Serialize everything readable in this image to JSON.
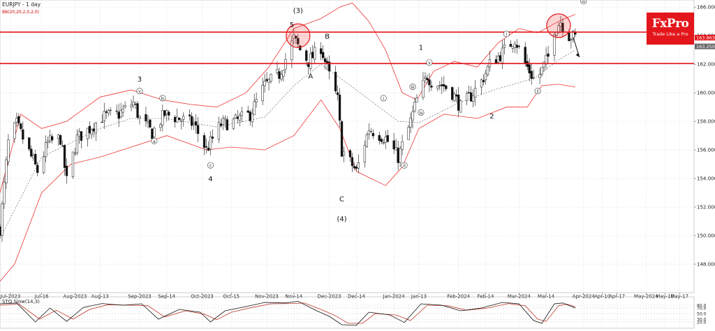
{
  "header": {
    "symbol_label": "EURJPY - 1 day",
    "indicator_label": "BB(20,20,2,0,2,0)"
  },
  "logo": {
    "main": "FxPro",
    "sub": "Trade Like a Pro"
  },
  "stochastic": {
    "label": "STO Slow(14,3)",
    "levels": [
      "80.0",
      "70.0",
      "50.0",
      "30.0",
      "20.0"
    ]
  },
  "price_tags": [
    {
      "value": "163.863",
      "color": "#e3161b"
    },
    {
      "value": "163.250",
      "color": "#666666"
    }
  ],
  "chart_data": {
    "type": "candlestick",
    "title": "EURJPY - 1 day",
    "ylim": [
      146.0,
      166.5
    ],
    "y_ticks": [
      "148.000",
      "150.000",
      "152.000",
      "154.000",
      "156.000",
      "158.000",
      "160.000",
      "162.000",
      "164.000",
      "166.000"
    ],
    "x_ticks": [
      "Jul-2023",
      "Jul-16",
      "Aug-2023",
      "Aug-13",
      "Sep-2023",
      "Sep-14",
      "Oct-2023",
      "Oct-15",
      "Nov-2023",
      "Nov-14",
      "Dec-2023",
      "Dec-14",
      "Jan-2024",
      "Jan-13",
      "Feb-2024",
      "Feb-14",
      "Mar-2024",
      "Mar-14",
      "Apr-2024",
      "Apr-10",
      "Apr-17",
      "May-2024",
      "May-10",
      "May-17"
    ],
    "horizontal_levels": [
      164.25,
      162.05
    ],
    "close_path": [
      {
        "d": "2023-06-26",
        "v": 150.5
      },
      {
        "d": "2023-06-30",
        "v": 156.5
      },
      {
        "d": "2023-07-04",
        "v": 157.8
      },
      {
        "d": "2023-07-11",
        "v": 155.5
      },
      {
        "d": "2023-07-14",
        "v": 154.5
      },
      {
        "d": "2023-07-19",
        "v": 156.5
      },
      {
        "d": "2023-07-25",
        "v": 156.8
      },
      {
        "d": "2023-07-28",
        "v": 153.8
      },
      {
        "d": "2023-08-02",
        "v": 156.8
      },
      {
        "d": "2023-08-08",
        "v": 157.5
      },
      {
        "d": "2023-08-14",
        "v": 158.3
      },
      {
        "d": "2023-08-22",
        "v": 158.5
      },
      {
        "d": "2023-08-29",
        "v": 159.3
      },
      {
        "d": "2023-09-01",
        "v": 158.2
      },
      {
        "d": "2023-09-07",
        "v": 157.2
      },
      {
        "d": "2023-09-13",
        "v": 158.5
      },
      {
        "d": "2023-09-20",
        "v": 158.2
      },
      {
        "d": "2023-09-27",
        "v": 157.8
      },
      {
        "d": "2023-10-03",
        "v": 156.0
      },
      {
        "d": "2023-10-10",
        "v": 157.8
      },
      {
        "d": "2023-10-17",
        "v": 158.0
      },
      {
        "d": "2023-10-24",
        "v": 158.5
      },
      {
        "d": "2023-10-31",
        "v": 160.5
      },
      {
        "d": "2023-11-07",
        "v": 161.3
      },
      {
        "d": "2023-11-14",
        "v": 163.8
      },
      {
        "d": "2023-11-17",
        "v": 163.0
      },
      {
        "d": "2023-11-21",
        "v": 162.2
      },
      {
        "d": "2023-11-27",
        "v": 163.2
      },
      {
        "d": "2023-12-01",
        "v": 161.2
      },
      {
        "d": "2023-12-05",
        "v": 159.5
      },
      {
        "d": "2023-12-07",
        "v": 156.0
      },
      {
        "d": "2023-12-14",
        "v": 154.5
      },
      {
        "d": "2023-12-20",
        "v": 157.5
      },
      {
        "d": "2023-12-28",
        "v": 156.8
      },
      {
        "d": "2024-01-03",
        "v": 155.5
      },
      {
        "d": "2024-01-08",
        "v": 157.5
      },
      {
        "d": "2024-01-12",
        "v": 159.5
      },
      {
        "d": "2024-01-17",
        "v": 161.2
      },
      {
        "d": "2024-01-19",
        "v": 160.8
      },
      {
        "d": "2024-01-25",
        "v": 160.5
      },
      {
        "d": "2024-01-29",
        "v": 160.0
      },
      {
        "d": "2024-02-02",
        "v": 159.0
      },
      {
        "d": "2024-02-07",
        "v": 159.8
      },
      {
        "d": "2024-02-12",
        "v": 160.8
      },
      {
        "d": "2024-02-16",
        "v": 162.0
      },
      {
        "d": "2024-02-22",
        "v": 162.8
      },
      {
        "d": "2024-02-28",
        "v": 163.8
      },
      {
        "d": "2024-03-03",
        "v": 162.3
      },
      {
        "d": "2024-03-08",
        "v": 161.0
      },
      {
        "d": "2024-03-11",
        "v": 161.3
      },
      {
        "d": "2024-03-15",
        "v": 162.5
      },
      {
        "d": "2024-03-18",
        "v": 164.5
      },
      {
        "d": "2024-03-21",
        "v": 165.0
      },
      {
        "d": "2024-03-25",
        "v": 164.0
      },
      {
        "d": "2024-03-28",
        "v": 163.9
      }
    ],
    "bollinger": {
      "upper": [
        {
          "d": "2023-06-26",
          "v": 153.0
        },
        {
          "d": "2023-07-06",
          "v": 158.5
        },
        {
          "d": "2023-07-16",
          "v": 157.5
        },
        {
          "d": "2023-07-28",
          "v": 158.0
        },
        {
          "d": "2023-08-13",
          "v": 159.7
        },
        {
          "d": "2023-08-28",
          "v": 160.2
        },
        {
          "d": "2023-09-12",
          "v": 159.5
        },
        {
          "d": "2023-09-25",
          "v": 159.2
        },
        {
          "d": "2023-10-08",
          "v": 159.0
        },
        {
          "d": "2023-10-22",
          "v": 160.0
        },
        {
          "d": "2023-11-02",
          "v": 161.8
        },
        {
          "d": "2023-11-14",
          "v": 164.5
        },
        {
          "d": "2023-11-27",
          "v": 165.2
        },
        {
          "d": "2023-12-06",
          "v": 166.0
        },
        {
          "d": "2023-12-12",
          "v": 166.3
        },
        {
          "d": "2023-12-20",
          "v": 165.0
        },
        {
          "d": "2023-12-28",
          "v": 163.0
        },
        {
          "d": "2024-01-05",
          "v": 160.0
        },
        {
          "d": "2024-01-12",
          "v": 159.5
        },
        {
          "d": "2024-01-20",
          "v": 161.5
        },
        {
          "d": "2024-01-30",
          "v": 162.2
        },
        {
          "d": "2024-02-10",
          "v": 161.8
        },
        {
          "d": "2024-02-20",
          "v": 163.5
        },
        {
          "d": "2024-03-01",
          "v": 164.5
        },
        {
          "d": "2024-03-10",
          "v": 164.2
        },
        {
          "d": "2024-03-20",
          "v": 165.0
        },
        {
          "d": "2024-03-28",
          "v": 165.5
        }
      ],
      "middle": [
        {
          "d": "2023-06-26",
          "v": 149.8
        },
        {
          "d": "2023-07-16",
          "v": 155.5
        },
        {
          "d": "2023-08-13",
          "v": 157.5
        },
        {
          "d": "2023-08-28",
          "v": 158.2
        },
        {
          "d": "2023-09-14",
          "v": 158.2
        },
        {
          "d": "2023-10-08",
          "v": 157.6
        },
        {
          "d": "2023-10-31",
          "v": 158.3
        },
        {
          "d": "2023-11-14",
          "v": 160.5
        },
        {
          "d": "2023-11-27",
          "v": 162.0
        },
        {
          "d": "2023-12-14",
          "v": 160.2
        },
        {
          "d": "2024-01-03",
          "v": 158.0
        },
        {
          "d": "2024-01-13",
          "v": 157.9
        },
        {
          "d": "2024-02-01",
          "v": 159.3
        },
        {
          "d": "2024-02-20",
          "v": 160.3
        },
        {
          "d": "2024-03-08",
          "v": 161.0
        },
        {
          "d": "2024-03-20",
          "v": 162.3
        },
        {
          "d": "2024-03-28",
          "v": 163.0
        }
      ],
      "lower": [
        {
          "d": "2023-06-26",
          "v": 146.8
        },
        {
          "d": "2023-07-03",
          "v": 148.0
        },
        {
          "d": "2023-07-16",
          "v": 153.0
        },
        {
          "d": "2023-07-30",
          "v": 155.0
        },
        {
          "d": "2023-08-13",
          "v": 155.5
        },
        {
          "d": "2023-08-28",
          "v": 156.2
        },
        {
          "d": "2023-09-14",
          "v": 157.0
        },
        {
          "d": "2023-10-03",
          "v": 156.0
        },
        {
          "d": "2023-10-15",
          "v": 156.2
        },
        {
          "d": "2023-10-31",
          "v": 156.0
        },
        {
          "d": "2023-11-14",
          "v": 157.0
        },
        {
          "d": "2023-11-27",
          "v": 159.5
        },
        {
          "d": "2023-12-06",
          "v": 157.5
        },
        {
          "d": "2023-12-14",
          "v": 154.5
        },
        {
          "d": "2023-12-28",
          "v": 153.5
        },
        {
          "d": "2024-01-05",
          "v": 154.8
        },
        {
          "d": "2024-01-13",
          "v": 157.5
        },
        {
          "d": "2024-01-25",
          "v": 158.5
        },
        {
          "d": "2024-02-10",
          "v": 158.2
        },
        {
          "d": "2024-02-24",
          "v": 159.0
        },
        {
          "d": "2024-03-05",
          "v": 159.0
        },
        {
          "d": "2024-03-12",
          "v": 160.5
        },
        {
          "d": "2024-03-20",
          "v": 160.6
        },
        {
          "d": "2024-03-28",
          "v": 160.4
        }
      ]
    },
    "projection": [
      {
        "d": "2024-03-27",
        "v": 163.9
      },
      {
        "d": "2024-03-30",
        "v": 162.5
      }
    ],
    "highlight_circles": [
      {
        "d": "2023-11-16",
        "v": 164.0
      },
      {
        "d": "2024-03-20",
        "v": 164.7
      }
    ],
    "wave_labels": [
      {
        "text": "(3)",
        "d": "2023-11-16",
        "v": 165.6,
        "circled": false
      },
      {
        "text": "5",
        "d": "2023-11-13",
        "v": 164.6,
        "circled": false
      },
      {
        "text": "B",
        "d": "2023-11-30",
        "v": 163.8,
        "circled": false
      },
      {
        "text": "A",
        "d": "2023-11-22",
        "v": 161.0,
        "circled": false
      },
      {
        "text": "C",
        "d": "2023-12-07",
        "v": 152.4,
        "circled": false
      },
      {
        "text": "(4)",
        "d": "2023-12-07",
        "v": 151.0,
        "circled": false
      },
      {
        "text": "3",
        "d": "2023-09-01",
        "v": 160.8,
        "circled": false
      },
      {
        "text": "4",
        "d": "2023-10-05",
        "v": 153.8,
        "circled": false
      },
      {
        "text": "1",
        "d": "2024-01-14",
        "v": 163.0,
        "circled": false
      },
      {
        "text": "2",
        "d": "2024-02-17",
        "v": 158.2,
        "circled": false
      },
      {
        "text": "v",
        "d": "2023-09-01",
        "v": 160.0,
        "circled": true
      },
      {
        "text": "a",
        "d": "2023-09-08",
        "v": 156.5,
        "circled": true
      },
      {
        "text": "b",
        "d": "2023-09-12",
        "v": 159.5,
        "circled": true
      },
      {
        "text": "c",
        "d": "2023-10-05",
        "v": 154.8,
        "circled": true
      },
      {
        "text": "i",
        "d": "2023-12-27",
        "v": 159.5,
        "circled": true
      },
      {
        "text": "ii",
        "d": "2024-01-06",
        "v": 154.8,
        "circled": true
      },
      {
        "text": "iii",
        "d": "2024-01-10",
        "v": 160.3,
        "circled": true
      },
      {
        "text": "iv",
        "d": "2024-01-14",
        "v": 158.5,
        "circled": true
      },
      {
        "text": "v",
        "d": "2024-01-18",
        "v": 162.0,
        "circled": true
      },
      {
        "text": "i",
        "d": "2024-02-24",
        "v": 164.0,
        "circled": true
      },
      {
        "text": "ii",
        "d": "2024-03-10",
        "v": 160.0,
        "circled": true
      },
      {
        "text": "iii",
        "d": "2024-04-01",
        "v": 166.3,
        "circled": true
      }
    ],
    "stochastic_k": [
      {
        "d": "2023-06-26",
        "v": 85
      },
      {
        "d": "2023-07-04",
        "v": 88
      },
      {
        "d": "2023-07-13",
        "v": 20
      },
      {
        "d": "2023-07-20",
        "v": 70
      },
      {
        "d": "2023-07-28",
        "v": 22
      },
      {
        "d": "2023-08-05",
        "v": 72
      },
      {
        "d": "2023-08-14",
        "v": 86
      },
      {
        "d": "2023-08-24",
        "v": 80
      },
      {
        "d": "2023-09-02",
        "v": 85
      },
      {
        "d": "2023-09-10",
        "v": 30
      },
      {
        "d": "2023-09-20",
        "v": 65
      },
      {
        "d": "2023-09-30",
        "v": 55
      },
      {
        "d": "2023-10-05",
        "v": 20
      },
      {
        "d": "2023-10-12",
        "v": 60
      },
      {
        "d": "2023-10-22",
        "v": 75
      },
      {
        "d": "2023-10-31",
        "v": 90
      },
      {
        "d": "2023-11-10",
        "v": 88
      },
      {
        "d": "2023-11-16",
        "v": 94
      },
      {
        "d": "2023-11-25",
        "v": 60
      },
      {
        "d": "2023-12-01",
        "v": 40
      },
      {
        "d": "2023-12-07",
        "v": 10
      },
      {
        "d": "2023-12-14",
        "v": 8
      },
      {
        "d": "2023-12-20",
        "v": 55
      },
      {
        "d": "2023-12-30",
        "v": 45
      },
      {
        "d": "2024-01-06",
        "v": 18
      },
      {
        "d": "2024-01-14",
        "v": 85
      },
      {
        "d": "2024-01-24",
        "v": 80
      },
      {
        "d": "2024-02-02",
        "v": 60
      },
      {
        "d": "2024-02-12",
        "v": 70
      },
      {
        "d": "2024-02-22",
        "v": 90
      },
      {
        "d": "2024-03-01",
        "v": 85
      },
      {
        "d": "2024-03-08",
        "v": 25
      },
      {
        "d": "2024-03-12",
        "v": 15
      },
      {
        "d": "2024-03-18",
        "v": 85
      },
      {
        "d": "2024-03-22",
        "v": 88
      },
      {
        "d": "2024-03-28",
        "v": 70
      }
    ],
    "stochastic_d": [
      {
        "d": "2023-06-26",
        "v": 80
      },
      {
        "d": "2023-07-05",
        "v": 85
      },
      {
        "d": "2023-07-15",
        "v": 30
      },
      {
        "d": "2023-07-23",
        "v": 62
      },
      {
        "d": "2023-07-31",
        "v": 30
      },
      {
        "d": "2023-08-08",
        "v": 65
      },
      {
        "d": "2023-08-17",
        "v": 82
      },
      {
        "d": "2023-08-27",
        "v": 80
      },
      {
        "d": "2023-09-05",
        "v": 78
      },
      {
        "d": "2023-09-13",
        "v": 38
      },
      {
        "d": "2023-09-23",
        "v": 60
      },
      {
        "d": "2023-10-02",
        "v": 48
      },
      {
        "d": "2023-10-08",
        "v": 28
      },
      {
        "d": "2023-10-15",
        "v": 55
      },
      {
        "d": "2023-10-25",
        "v": 72
      },
      {
        "d": "2023-11-03",
        "v": 85
      },
      {
        "d": "2023-11-13",
        "v": 86
      },
      {
        "d": "2023-11-19",
        "v": 88
      },
      {
        "d": "2023-11-28",
        "v": 62
      },
      {
        "d": "2023-12-04",
        "v": 42
      },
      {
        "d": "2023-12-10",
        "v": 15
      },
      {
        "d": "2023-12-17",
        "v": 15
      },
      {
        "d": "2023-12-23",
        "v": 50
      },
      {
        "d": "2024-01-02",
        "v": 45
      },
      {
        "d": "2024-01-09",
        "v": 25
      },
      {
        "d": "2024-01-17",
        "v": 80
      },
      {
        "d": "2024-01-27",
        "v": 78
      },
      {
        "d": "2024-02-05",
        "v": 62
      },
      {
        "d": "2024-02-15",
        "v": 70
      },
      {
        "d": "2024-02-25",
        "v": 86
      },
      {
        "d": "2024-03-04",
        "v": 78
      },
      {
        "d": "2024-03-10",
        "v": 30
      },
      {
        "d": "2024-03-14",
        "v": 22
      },
      {
        "d": "2024-03-20",
        "v": 78
      },
      {
        "d": "2024-03-24",
        "v": 84
      },
      {
        "d": "2024-03-28",
        "v": 74
      }
    ]
  }
}
